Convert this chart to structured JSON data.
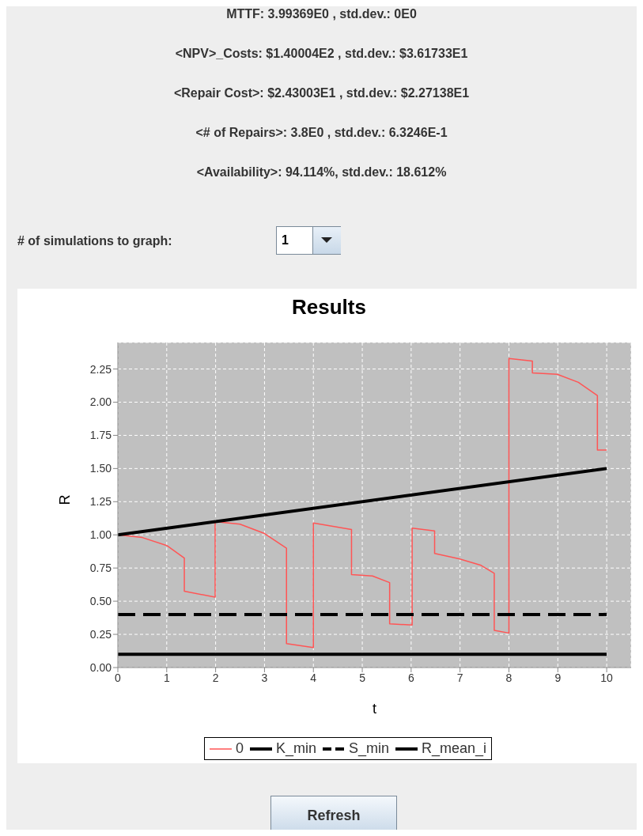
{
  "chart_data": {
    "type": "line",
    "title": "Results",
    "xlabel": "t",
    "ylabel": "R",
    "annotations": [
      "MTTF: 3.99369E0 , std.dev.: 0E0",
      "<NPV>_Costs: $1.40004E2 , std.dev.: $3.61733E1",
      "<Repair Cost>: $2.43003E1 , std.dev.: $2.27138E1",
      "<# of Repairs>: 3.8E0 , std.dev.: 6.3246E-1",
      "<Availability>: 94.114%, std.dev.: 18.612%",
      "# of simulations to graph:",
      "1",
      "Refresh"
    ],
    "xlim": [
      0,
      10.5
    ],
    "ylim": [
      0,
      2.45
    ],
    "xticks": [
      0,
      1,
      2,
      3,
      4,
      5,
      6,
      7,
      8,
      9,
      10
    ],
    "yticks": [
      {
        "value": 0,
        "label": "0.00"
      },
      {
        "value": 0.25,
        "label": "0.25"
      },
      {
        "value": 0.5,
        "label": "0.50"
      },
      {
        "value": 0.75,
        "label": "0.75"
      },
      {
        "value": 1,
        "label": "1.00"
      },
      {
        "value": 1.25,
        "label": "1.25"
      },
      {
        "value": 1.5,
        "label": "1.50"
      },
      {
        "value": 1.75,
        "label": "1.75"
      },
      {
        "value": 2,
        "label": "2.00"
      },
      {
        "value": 2.25,
        "label": "2.25"
      }
    ],
    "grid": true,
    "legend": "bottom",
    "series": [
      {
        "name": "0",
        "color": "#ff5555",
        "x": [
          0,
          0.5,
          1,
          1.36,
          1.36,
          1.99,
          1.99,
          2.5,
          3,
          3.45,
          3.45,
          4.0,
          4.0,
          4.78,
          4.78,
          5.21,
          5.56,
          5.56,
          6.02,
          6.02,
          6.48,
          6.48,
          6.98,
          7.43,
          7.7,
          7.7,
          8.0,
          8.0,
          8.48,
          8.48,
          8.99,
          9.42,
          9.81,
          9.81,
          10.0
        ],
        "values": [
          1.0,
          0.98,
          0.92,
          0.825,
          0.575,
          0.53,
          1.1,
          1.08,
          1.01,
          0.9,
          0.18,
          0.15,
          1.09,
          1.04,
          0.7,
          0.69,
          0.64,
          0.33,
          0.32,
          1.05,
          1.03,
          0.86,
          0.82,
          0.77,
          0.71,
          0.28,
          0.26,
          2.33,
          2.31,
          2.22,
          2.21,
          2.15,
          2.05,
          1.64,
          1.64
        ]
      },
      {
        "name": "K_min",
        "color": "#000000",
        "x": [
          0,
          10
        ],
        "values": [
          0.1,
          0.1
        ]
      },
      {
        "name": "S_min",
        "color": "#000000",
        "x": [
          0,
          10
        ],
        "values": [
          0.4,
          0.4
        ],
        "line_style": "dashed"
      },
      {
        "name": "R_mean_i",
        "color": "#000000",
        "x": [
          0,
          10
        ],
        "values": [
          1.0,
          1.5
        ]
      }
    ]
  }
}
